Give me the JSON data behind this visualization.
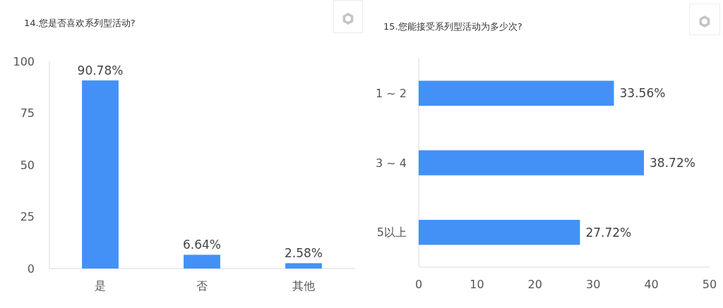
{
  "chart_data": [
    {
      "type": "bar",
      "title": "14.您是否喜欢系列型活动?",
      "categories": [
        "是",
        "否",
        "其他"
      ],
      "values": [
        90.78,
        6.64,
        2.58
      ],
      "value_labels": [
        "90.78%",
        "6.64%",
        "2.58%"
      ],
      "color": "#4391f7",
      "ylim": [
        0,
        100
      ],
      "yticks": [
        0,
        25,
        50,
        75,
        100
      ]
    },
    {
      "type": "bar",
      "orientation": "horizontal",
      "title": "15.您能接受系列型活动为多少次?",
      "categories": [
        "1 ~ 2",
        "3 ~ 4",
        "5以上"
      ],
      "values": [
        33.56,
        38.72,
        27.72
      ],
      "value_labels": [
        "33.56%",
        "38.72%",
        "27.72%"
      ],
      "color": "#4391f7",
      "xlim": [
        0,
        50
      ],
      "xticks": [
        0,
        10,
        20,
        30,
        40,
        50
      ]
    }
  ]
}
